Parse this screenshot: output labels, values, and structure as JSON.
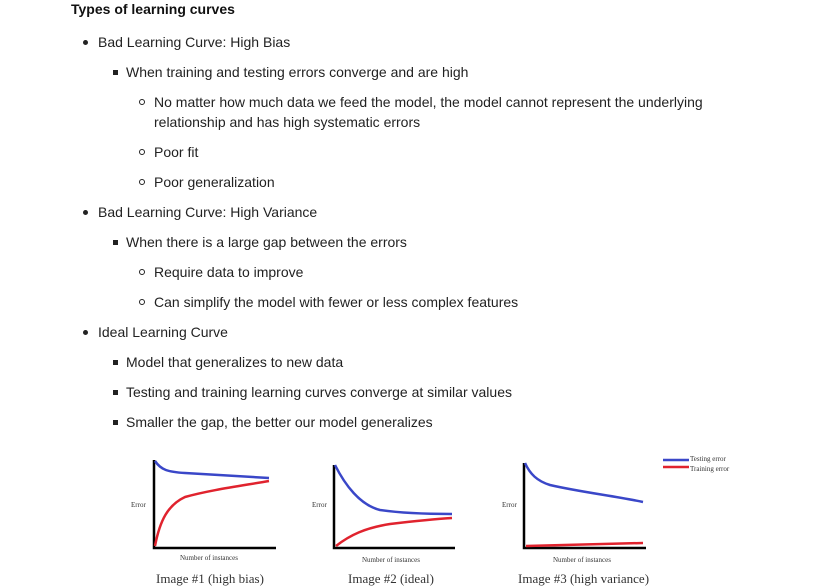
{
  "title": "Types of learning curves",
  "sections": [
    {
      "label": "Bad Learning Curve: High Bias",
      "sub": "When training and testing errors converge and are high",
      "details": [
        "No matter how much data we feed the model, the model cannot represent the underlying",
        "relationship and has high systematic errors",
        "Poor fit",
        "Poor generalization"
      ]
    },
    {
      "label": "Bad Learning Curve: High Variance",
      "sub": "When there is a large gap between the errors",
      "details": [
        "Require data to improve",
        "Can simplify the model with fewer or less complex features"
      ]
    },
    {
      "label": "Ideal Learning Curve",
      "subs": [
        "Model that generalizes to new data",
        "Testing and training learning curves converge at similar values",
        "Smaller the gap, the better our model generalizes"
      ]
    }
  ],
  "figure": {
    "ylabel": "Error",
    "xlabel": "Number of instances",
    "legend": [
      "Testing error",
      "Training error"
    ],
    "colors": {
      "testing": "#3a47c8",
      "training": "#e0232e",
      "axis": "#000000"
    },
    "captions": [
      "Image #1 (high bias)",
      "Image #2 (ideal)",
      "Image #3 (high variance)"
    ]
  }
}
